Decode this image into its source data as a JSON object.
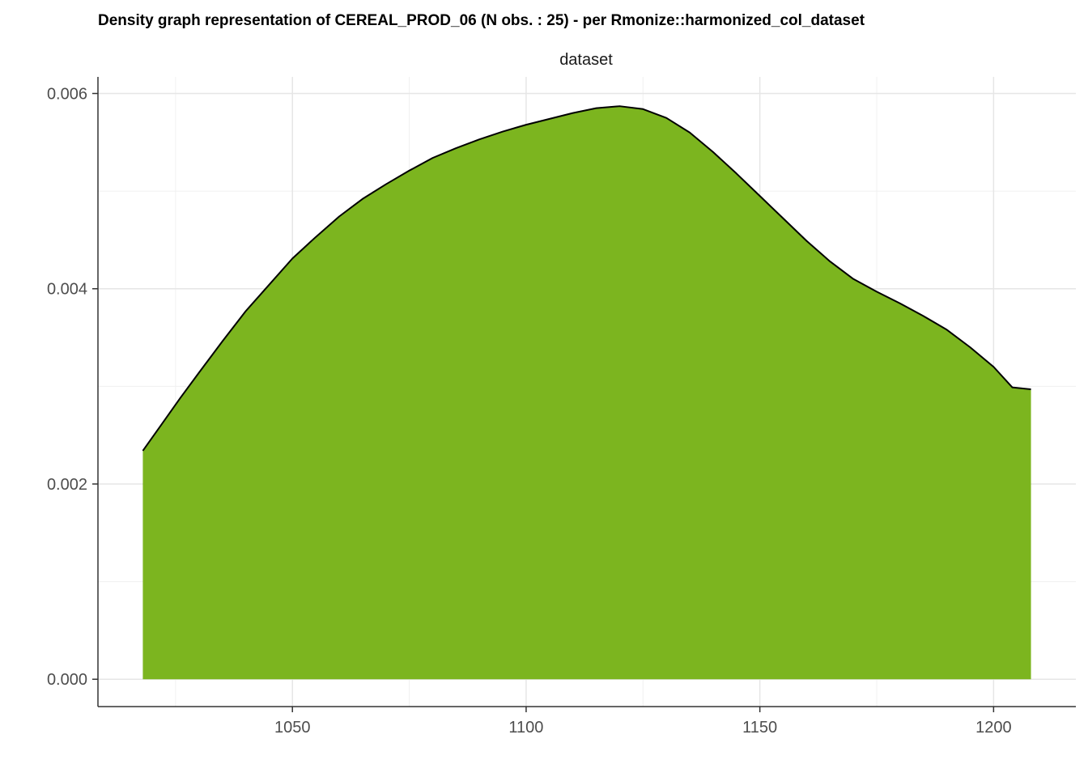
{
  "chart_data": {
    "type": "area",
    "title": "Density graph representation of CEREAL_PROD_06 (N obs. : 25) - per Rmonize::harmonized_col_dataset",
    "facet_label": "dataset",
    "xlabel": "",
    "ylabel": "",
    "xlim": [
      1008.4,
      1217.6
    ],
    "ylim": [
      -0.00028,
      0.00617
    ],
    "x_ticks": [
      1050,
      1100,
      1150,
      1200
    ],
    "x_tick_labels": [
      "1050",
      "1100",
      "1150",
      "1200"
    ],
    "y_ticks": [
      0.0,
      0.002,
      0.004,
      0.006
    ],
    "y_tick_labels": [
      "0.000",
      "0.002",
      "0.004",
      "0.006"
    ],
    "grid": true,
    "legend": "none",
    "fill_color": "#7cb51f",
    "line_color": "#000000",
    "series": [
      {
        "x": [
          1018,
          1022,
          1026,
          1030,
          1035,
          1040,
          1045,
          1050,
          1055,
          1060,
          1065,
          1070,
          1075,
          1080,
          1085,
          1090,
          1095,
          1100,
          1105,
          1110,
          1115,
          1120,
          1125,
          1130,
          1135,
          1140,
          1145,
          1150,
          1155,
          1160,
          1165,
          1170,
          1175,
          1180,
          1185,
          1190,
          1195,
          1200,
          1204,
          1208
        ],
        "y": [
          0.00234,
          0.00261,
          0.00288,
          0.00314,
          0.00346,
          0.00377,
          0.00404,
          0.00431,
          0.00453,
          0.00474,
          0.00492,
          0.00507,
          0.00521,
          0.00534,
          0.00544,
          0.00553,
          0.00561,
          0.00568,
          0.00574,
          0.0058,
          0.00585,
          0.00587,
          0.00584,
          0.00575,
          0.0056,
          0.0054,
          0.00518,
          0.00495,
          0.00472,
          0.00449,
          0.00428,
          0.0041,
          0.00397,
          0.00385,
          0.00372,
          0.00358,
          0.0034,
          0.0032,
          0.00299,
          0.00297
        ]
      }
    ]
  }
}
